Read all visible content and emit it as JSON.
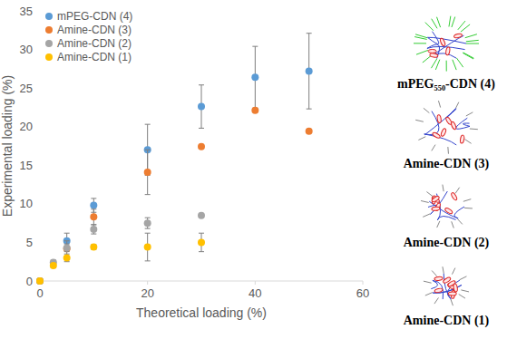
{
  "chart_data": {
    "type": "scatter",
    "x_label": "Theoretical loading (%)",
    "y_label": "Experimental loading (%)",
    "xlim": [
      0,
      60
    ],
    "xticks": [
      0,
      20,
      40,
      60
    ],
    "ylim": [
      0,
      35
    ],
    "yticks": [
      0,
      5,
      10,
      15,
      20,
      25,
      30,
      35
    ],
    "grid": false,
    "legend": "top-left",
    "marker": "circle",
    "series": [
      {
        "name": "mPEG-CDN (4)",
        "color": "#5b9bd5",
        "x": [
          0,
          5,
          10,
          20,
          30,
          40,
          50
        ],
        "values": [
          0,
          5.2,
          9.8,
          17,
          22.6,
          26.4,
          27.2
        ],
        "errors": [
          0,
          1.0,
          0.9,
          3.3,
          2.8,
          4.0,
          4.9
        ]
      },
      {
        "name": "Amine-CDN (3)",
        "color": "#ed7d31",
        "x": [
          0,
          5,
          10,
          20,
          30,
          40,
          50
        ],
        "values": [
          0,
          4.2,
          8.3,
          14.1,
          17.4,
          22.1,
          19.4
        ],
        "errors": [
          0,
          1.0,
          1.0,
          2.9,
          0,
          0,
          0
        ]
      },
      {
        "name": "Amine-CDN (2)",
        "color": "#a5a5a5",
        "x": [
          0,
          2.5,
          5,
          10,
          20,
          30
        ],
        "values": [
          0,
          2.4,
          4.3,
          6.7,
          7.5,
          8.5
        ],
        "errors": [
          0,
          0.3,
          0.5,
          0.6,
          0.7,
          0
        ]
      },
      {
        "name": "Amine-CDN (1)",
        "color": "#ffc000",
        "x": [
          0,
          2.5,
          5,
          10,
          20,
          30
        ],
        "values": [
          0,
          2.0,
          3.0,
          4.4,
          4.4,
          5.0
        ],
        "errors": [
          0,
          0.3,
          0.5,
          0.3,
          1.8,
          1.2
        ]
      }
    ],
    "annotations": [
      "mPEG₅₅₀-CDN (4)",
      "Amine-CDN (3)",
      "Amine-CDN (2)",
      "Amine-CDN (1)"
    ]
  }
}
